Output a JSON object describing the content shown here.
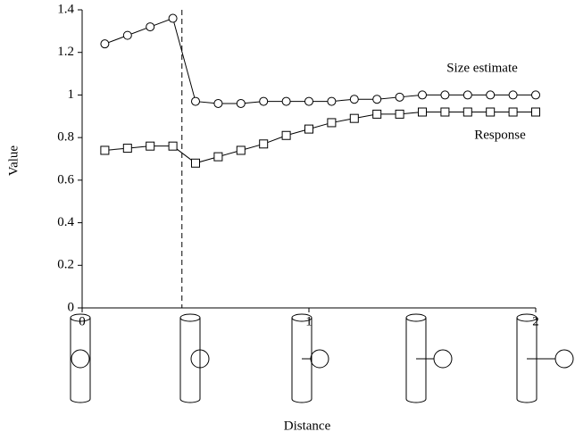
{
  "chart_data": {
    "type": "line",
    "x_label": "Distance",
    "y_label": "Value",
    "x": [
      0.1,
      0.2,
      0.3,
      0.4,
      0.5,
      0.6,
      0.7,
      0.8,
      0.9,
      1.0,
      1.1,
      1.2,
      1.3,
      1.4,
      1.5,
      1.6,
      1.7,
      1.8,
      1.9,
      2.0
    ],
    "series": [
      {
        "name": "Size estimate",
        "color": "#000000",
        "marker": "circle",
        "values": [
          1.24,
          1.28,
          1.32,
          1.36,
          0.97,
          0.96,
          0.96,
          0.97,
          0.97,
          0.97,
          0.97,
          0.98,
          0.98,
          0.99,
          1.0,
          1.0,
          1.0,
          1.0,
          1.0,
          1.0
        ]
      },
      {
        "name": "Response",
        "color": "#000000",
        "marker": "square",
        "values": [
          0.74,
          0.75,
          0.76,
          0.76,
          0.68,
          0.71,
          0.74,
          0.77,
          0.81,
          0.84,
          0.87,
          0.89,
          0.91,
          0.91,
          0.92,
          0.92,
          0.92,
          0.92,
          0.92,
          0.92
        ]
      }
    ],
    "vline": 0.44,
    "xlim": [
      0,
      2
    ],
    "xticks": [
      0,
      1,
      2
    ],
    "ylim": [
      0,
      1.4
    ],
    "yticks": [
      0,
      0.2,
      0.4,
      0.6,
      0.8,
      1,
      1.2,
      1.4
    ],
    "grid": false
  }
}
